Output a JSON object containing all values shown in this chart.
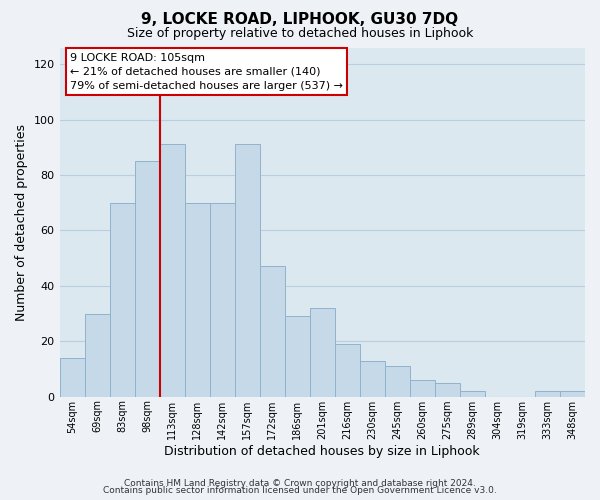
{
  "title": "9, LOCKE ROAD, LIPHOOK, GU30 7DQ",
  "subtitle": "Size of property relative to detached houses in Liphook",
  "xlabel": "Distribution of detached houses by size in Liphook",
  "ylabel": "Number of detached properties",
  "bar_labels": [
    "54sqm",
    "69sqm",
    "83sqm",
    "98sqm",
    "113sqm",
    "128sqm",
    "142sqm",
    "157sqm",
    "172sqm",
    "186sqm",
    "201sqm",
    "216sqm",
    "230sqm",
    "245sqm",
    "260sqm",
    "275sqm",
    "289sqm",
    "304sqm",
    "319sqm",
    "333sqm",
    "348sqm"
  ],
  "bar_values": [
    14,
    30,
    70,
    85,
    91,
    70,
    70,
    91,
    47,
    29,
    32,
    19,
    13,
    11,
    6,
    5,
    2,
    0,
    0,
    2,
    2
  ],
  "bar_color": "#c6d9e8",
  "bar_edge_color": "#8fb3cc",
  "vline_x": 3.5,
  "vline_color": "#cc0000",
  "ylim": [
    0,
    126
  ],
  "yticks": [
    0,
    20,
    40,
    60,
    80,
    100,
    120
  ],
  "annotation_title": "9 LOCKE ROAD: 105sqm",
  "annotation_line1": "← 21% of detached houses are smaller (140)",
  "annotation_line2": "79% of semi-detached houses are larger (537) →",
  "footer_line1": "Contains HM Land Registry data © Crown copyright and database right 2024.",
  "footer_line2": "Contains public sector information licensed under the Open Government Licence v3.0.",
  "background_color": "#eef2f7",
  "plot_background_color": "#dce8f0",
  "grid_color": "#b8cfe0"
}
